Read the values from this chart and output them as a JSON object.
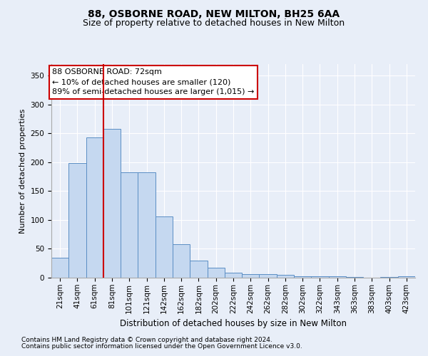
{
  "title1": "88, OSBORNE ROAD, NEW MILTON, BH25 6AA",
  "title2": "Size of property relative to detached houses in New Milton",
  "xlabel": "Distribution of detached houses by size in New Milton",
  "ylabel": "Number of detached properties",
  "categories": [
    "21sqm",
    "41sqm",
    "61sqm",
    "81sqm",
    "101sqm",
    "121sqm",
    "142sqm",
    "162sqm",
    "182sqm",
    "202sqm",
    "222sqm",
    "242sqm",
    "262sqm",
    "282sqm",
    "302sqm",
    "322sqm",
    "343sqm",
    "363sqm",
    "383sqm",
    "403sqm",
    "423sqm"
  ],
  "values": [
    35,
    198,
    243,
    258,
    182,
    182,
    106,
    58,
    30,
    17,
    9,
    6,
    6,
    5,
    2,
    2,
    3,
    1,
    0,
    1,
    2
  ],
  "bar_color": "#c5d8f0",
  "bar_edge_color": "#5b8ec4",
  "vline_x": 2.5,
  "vline_color": "#cc0000",
  "annotation_text": "88 OSBORNE ROAD: 72sqm\n← 10% of detached houses are smaller (120)\n89% of semi-detached houses are larger (1,015) →",
  "annotation_box_color": "#ffffff",
  "annotation_box_edge": "#cc0000",
  "ylim": [
    0,
    370
  ],
  "yticks": [
    0,
    50,
    100,
    150,
    200,
    250,
    300,
    350
  ],
  "bg_color": "#e8eef8",
  "plot_bg_color": "#e8eef8",
  "footer1": "Contains HM Land Registry data © Crown copyright and database right 2024.",
  "footer2": "Contains public sector information licensed under the Open Government Licence v3.0.",
  "title1_fontsize": 10,
  "title2_fontsize": 9,
  "xlabel_fontsize": 8.5,
  "ylabel_fontsize": 8,
  "tick_fontsize": 7.5,
  "annotation_fontsize": 8,
  "footer_fontsize": 6.5
}
